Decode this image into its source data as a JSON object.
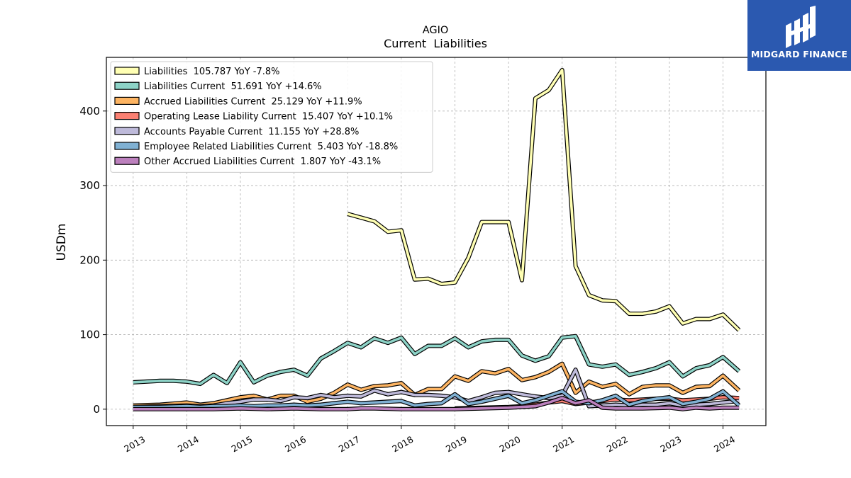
{
  "brand": {
    "name": "MIDGARD FINANCE",
    "icon": "midgard-logo-icon",
    "color": "#2b59b0"
  },
  "chart_data": {
    "type": "line",
    "title": "AGIO",
    "subtitle": "Current  Liabilities",
    "xlabel": "",
    "ylabel": "USDm",
    "xlim": [
      2012.5,
      2024.8
    ],
    "ylim": [
      -22,
      472
    ],
    "yticks": [
      0,
      100,
      200,
      300,
      400
    ],
    "xticks": [
      "2013",
      "2014",
      "2015",
      "2016",
      "2017",
      "2018",
      "2019",
      "2020",
      "2021",
      "2022",
      "2023",
      "2024"
    ],
    "grid": true,
    "legend_position": "top-left",
    "series": [
      {
        "name": "Liabilities  105.787 YoY -7.8%",
        "color": "#ffffb3",
        "points": [
          [
            2017.0,
            262
          ],
          [
            2017.5,
            252
          ],
          [
            2017.75,
            238
          ],
          [
            2018.0,
            240
          ],
          [
            2018.25,
            174
          ],
          [
            2018.5,
            175
          ],
          [
            2018.75,
            168
          ],
          [
            2019.0,
            170
          ],
          [
            2019.25,
            203
          ],
          [
            2019.5,
            251
          ],
          [
            2019.75,
            251
          ],
          [
            2020.0,
            251
          ],
          [
            2020.25,
            173
          ],
          [
            2020.5,
            417
          ],
          [
            2020.75,
            428
          ],
          [
            2021.0,
            455
          ],
          [
            2021.25,
            192
          ],
          [
            2021.5,
            153
          ],
          [
            2021.75,
            146
          ],
          [
            2022.0,
            145
          ],
          [
            2022.25,
            128
          ],
          [
            2022.5,
            128
          ],
          [
            2022.75,
            131
          ],
          [
            2023.0,
            138
          ],
          [
            2023.25,
            115
          ],
          [
            2023.5,
            121
          ],
          [
            2023.75,
            121
          ],
          [
            2024.0,
            127
          ],
          [
            2024.3,
            106
          ]
        ]
      },
      {
        "name": "Liabilities Current  51.691 YoY +14.6%",
        "color": "#8dd3c7",
        "points": [
          [
            2013.0,
            36
          ],
          [
            2013.5,
            38
          ],
          [
            2013.75,
            38
          ],
          [
            2014.0,
            37
          ],
          [
            2014.25,
            34
          ],
          [
            2014.5,
            46
          ],
          [
            2014.75,
            35
          ],
          [
            2015.0,
            63
          ],
          [
            2015.25,
            36
          ],
          [
            2015.5,
            45
          ],
          [
            2015.75,
            50
          ],
          [
            2016.0,
            53
          ],
          [
            2016.25,
            45
          ],
          [
            2016.5,
            68
          ],
          [
            2016.75,
            78
          ],
          [
            2017.0,
            89
          ],
          [
            2017.25,
            83
          ],
          [
            2017.5,
            95
          ],
          [
            2017.75,
            89
          ],
          [
            2018.0,
            96
          ],
          [
            2018.25,
            74
          ],
          [
            2018.5,
            85
          ],
          [
            2018.75,
            85
          ],
          [
            2019.0,
            95
          ],
          [
            2019.25,
            83
          ],
          [
            2019.5,
            91
          ],
          [
            2019.75,
            93
          ],
          [
            2020.0,
            93
          ],
          [
            2020.25,
            72
          ],
          [
            2020.5,
            65
          ],
          [
            2020.75,
            71
          ],
          [
            2021.0,
            96
          ],
          [
            2021.25,
            98
          ],
          [
            2021.5,
            60
          ],
          [
            2021.75,
            57
          ],
          [
            2022.0,
            60
          ],
          [
            2022.25,
            46
          ],
          [
            2022.5,
            50
          ],
          [
            2022.75,
            55
          ],
          [
            2023.0,
            63
          ],
          [
            2023.25,
            44
          ],
          [
            2023.5,
            55
          ],
          [
            2023.75,
            59
          ],
          [
            2024.0,
            70
          ],
          [
            2024.3,
            51
          ]
        ]
      },
      {
        "name": "Accrued Liabilities Current  25.129 YoY +11.9%",
        "color": "#fdb462",
        "points": [
          [
            2013.0,
            5
          ],
          [
            2013.5,
            6
          ],
          [
            2014.0,
            9
          ],
          [
            2014.25,
            6
          ],
          [
            2014.5,
            8
          ],
          [
            2014.75,
            12
          ],
          [
            2015.0,
            16
          ],
          [
            2015.25,
            18
          ],
          [
            2015.5,
            13
          ],
          [
            2015.75,
            18
          ],
          [
            2016.0,
            18
          ],
          [
            2016.25,
            10
          ],
          [
            2016.5,
            14
          ],
          [
            2016.75,
            22
          ],
          [
            2017.0,
            33
          ],
          [
            2017.25,
            26
          ],
          [
            2017.5,
            31
          ],
          [
            2017.75,
            32
          ],
          [
            2018.0,
            35
          ],
          [
            2018.25,
            19
          ],
          [
            2018.5,
            27
          ],
          [
            2018.75,
            27
          ],
          [
            2019.0,
            44
          ],
          [
            2019.25,
            38
          ],
          [
            2019.5,
            51
          ],
          [
            2019.75,
            48
          ],
          [
            2020.0,
            54
          ],
          [
            2020.25,
            39
          ],
          [
            2020.5,
            43
          ],
          [
            2020.75,
            50
          ],
          [
            2021.0,
            61
          ],
          [
            2021.25,
            22
          ],
          [
            2021.5,
            37
          ],
          [
            2021.75,
            30
          ],
          [
            2022.0,
            34
          ],
          [
            2022.25,
            20
          ],
          [
            2022.5,
            30
          ],
          [
            2022.75,
            32
          ],
          [
            2023.0,
            32
          ],
          [
            2023.25,
            22
          ],
          [
            2023.5,
            30
          ],
          [
            2023.75,
            31
          ],
          [
            2024.0,
            45
          ],
          [
            2024.3,
            25
          ]
        ]
      },
      {
        "name": "Operating Lease Liability Current  15.407 YoY +10.1%",
        "color": "#fb8072",
        "points": [
          [
            2019.0,
            1
          ],
          [
            2019.5,
            2
          ],
          [
            2020.0,
            3
          ],
          [
            2020.25,
            4
          ],
          [
            2020.5,
            6
          ],
          [
            2020.75,
            9
          ],
          [
            2021.0,
            11
          ],
          [
            2021.25,
            7
          ],
          [
            2021.5,
            9
          ],
          [
            2021.75,
            11
          ],
          [
            2022.0,
            13
          ],
          [
            2022.25,
            12
          ],
          [
            2022.5,
            13
          ],
          [
            2022.75,
            14
          ],
          [
            2023.0,
            14
          ],
          [
            2023.25,
            12
          ],
          [
            2023.5,
            13
          ],
          [
            2023.75,
            14
          ],
          [
            2024.0,
            16
          ],
          [
            2024.3,
            15
          ]
        ]
      },
      {
        "name": "Accounts Payable Current  11.155 YoY +28.8%",
        "color": "#bebada",
        "points": [
          [
            2013.0,
            3
          ],
          [
            2013.5,
            4
          ],
          [
            2014.0,
            5
          ],
          [
            2014.25,
            4
          ],
          [
            2014.5,
            5
          ],
          [
            2014.75,
            8
          ],
          [
            2015.0,
            10
          ],
          [
            2015.25,
            13
          ],
          [
            2015.5,
            13
          ],
          [
            2015.75,
            11
          ],
          [
            2016.0,
            16
          ],
          [
            2016.25,
            15
          ],
          [
            2016.5,
            19
          ],
          [
            2016.75,
            16
          ],
          [
            2017.0,
            18
          ],
          [
            2017.25,
            17
          ],
          [
            2017.5,
            25
          ],
          [
            2017.75,
            20
          ],
          [
            2018.0,
            23
          ],
          [
            2018.25,
            19
          ],
          [
            2018.5,
            19
          ],
          [
            2018.75,
            18
          ],
          [
            2019.0,
            16
          ],
          [
            2019.25,
            11
          ],
          [
            2019.5,
            16
          ],
          [
            2019.75,
            22
          ],
          [
            2020.0,
            23
          ],
          [
            2020.25,
            20
          ],
          [
            2020.5,
            17
          ],
          [
            2020.75,
            15
          ],
          [
            2021.0,
            18
          ],
          [
            2021.25,
            53
          ],
          [
            2021.5,
            4
          ],
          [
            2021.75,
            5
          ],
          [
            2022.0,
            6
          ],
          [
            2022.25,
            5
          ],
          [
            2022.5,
            6
          ],
          [
            2022.75,
            6
          ],
          [
            2023.0,
            8
          ],
          [
            2023.25,
            5
          ],
          [
            2023.5,
            6
          ],
          [
            2023.75,
            7
          ],
          [
            2024.0,
            9
          ],
          [
            2024.3,
            11
          ]
        ]
      },
      {
        "name": "Employee Related Liabilities Current  5.403 YoY -18.8%",
        "color": "#80b1d3",
        "points": [
          [
            2013.0,
            3
          ],
          [
            2013.5,
            3
          ],
          [
            2014.0,
            4
          ],
          [
            2014.25,
            3
          ],
          [
            2014.5,
            4
          ],
          [
            2014.75,
            4
          ],
          [
            2015.0,
            5
          ],
          [
            2015.25,
            4
          ],
          [
            2015.5,
            5
          ],
          [
            2015.75,
            5
          ],
          [
            2016.0,
            6
          ],
          [
            2016.25,
            5
          ],
          [
            2016.5,
            6
          ],
          [
            2016.75,
            8
          ],
          [
            2017.0,
            10
          ],
          [
            2017.25,
            8
          ],
          [
            2017.5,
            9
          ],
          [
            2017.75,
            10
          ],
          [
            2018.0,
            11
          ],
          [
            2018.25,
            5
          ],
          [
            2018.5,
            7
          ],
          [
            2018.75,
            8
          ],
          [
            2019.0,
            20
          ],
          [
            2019.25,
            7
          ],
          [
            2019.5,
            10
          ],
          [
            2019.75,
            14
          ],
          [
            2020.0,
            18
          ],
          [
            2020.25,
            8
          ],
          [
            2020.5,
            12
          ],
          [
            2020.75,
            18
          ],
          [
            2021.0,
            24
          ],
          [
            2021.25,
            10
          ],
          [
            2021.5,
            8
          ],
          [
            2021.75,
            12
          ],
          [
            2022.0,
            18
          ],
          [
            2022.25,
            6
          ],
          [
            2022.5,
            11
          ],
          [
            2022.75,
            14
          ],
          [
            2023.0,
            16
          ],
          [
            2023.25,
            7
          ],
          [
            2023.5,
            10
          ],
          [
            2023.75,
            14
          ],
          [
            2024.0,
            24
          ],
          [
            2024.3,
            5
          ]
        ]
      },
      {
        "name": "Other Accrued Liabilities Current  1.807 YoY -43.1%",
        "color": "#bc80bd",
        "points": [
          [
            2013.0,
            0
          ],
          [
            2013.5,
            0
          ],
          [
            2014.0,
            0
          ],
          [
            2014.5,
            0
          ],
          [
            2015.0,
            1
          ],
          [
            2015.5,
            0
          ],
          [
            2016.0,
            1
          ],
          [
            2016.5,
            0
          ],
          [
            2017.0,
            0
          ],
          [
            2017.25,
            1
          ],
          [
            2017.5,
            1
          ],
          [
            2018.0,
            0
          ],
          [
            2018.5,
            0
          ],
          [
            2019.0,
            0
          ],
          [
            2019.5,
            1
          ],
          [
            2020.0,
            2
          ],
          [
            2020.5,
            4
          ],
          [
            2020.75,
            9
          ],
          [
            2021.0,
            15
          ],
          [
            2021.25,
            8
          ],
          [
            2021.5,
            12
          ],
          [
            2021.75,
            2
          ],
          [
            2022.0,
            1
          ],
          [
            2022.5,
            1
          ],
          [
            2023.0,
            2
          ],
          [
            2023.25,
            0
          ],
          [
            2023.5,
            2
          ],
          [
            2023.75,
            1
          ],
          [
            2024.0,
            2
          ],
          [
            2024.3,
            2
          ]
        ]
      }
    ]
  }
}
